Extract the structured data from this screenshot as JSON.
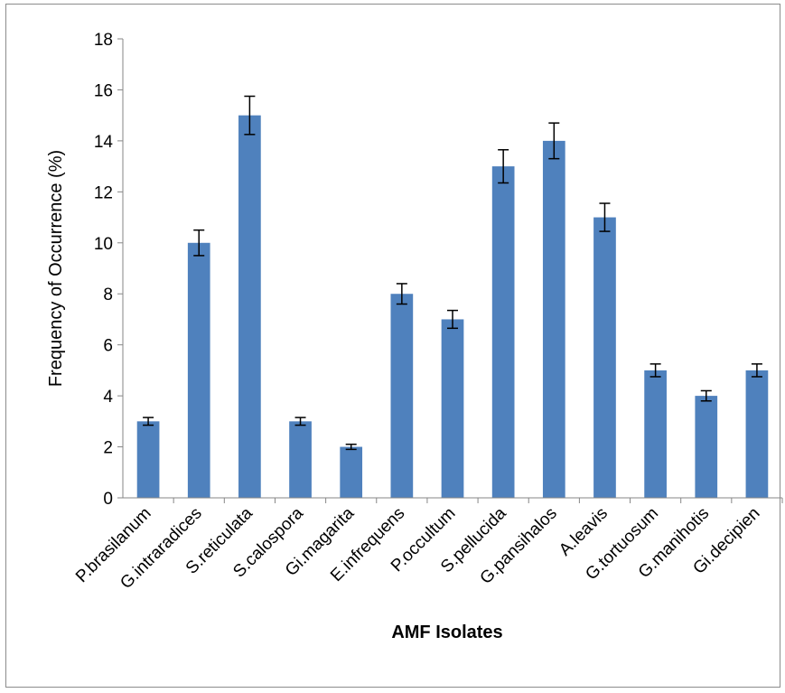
{
  "chart_data": {
    "type": "bar",
    "title": "",
    "xlabel": "AMF Isolates",
    "ylabel": "Frequency of Occurrence (%)",
    "ylim": [
      0,
      18
    ],
    "yticks": [
      0,
      2,
      4,
      6,
      8,
      10,
      12,
      14,
      16,
      18
    ],
    "grid": false,
    "legend": "none",
    "bar_color": "#4f81bd",
    "categories": [
      "P.brasilanum",
      "G.intraradices",
      "S.reticulata",
      "S.calospora",
      "Gi.magarita",
      "E.infrequens",
      "P.occultum",
      "S.pellucida",
      "G.pansihalos",
      "A.leavis",
      "G.tortuosum",
      "G.manihotis",
      "Gi.decipien"
    ],
    "series": [
      {
        "values": [
          3,
          10,
          15,
          3,
          2,
          8,
          7,
          13,
          14,
          11,
          5,
          4,
          5
        ],
        "error": [
          0.15,
          0.5,
          0.75,
          0.15,
          0.1,
          0.4,
          0.35,
          0.65,
          0.7,
          0.55,
          0.25,
          0.2,
          0.25
        ]
      }
    ]
  }
}
